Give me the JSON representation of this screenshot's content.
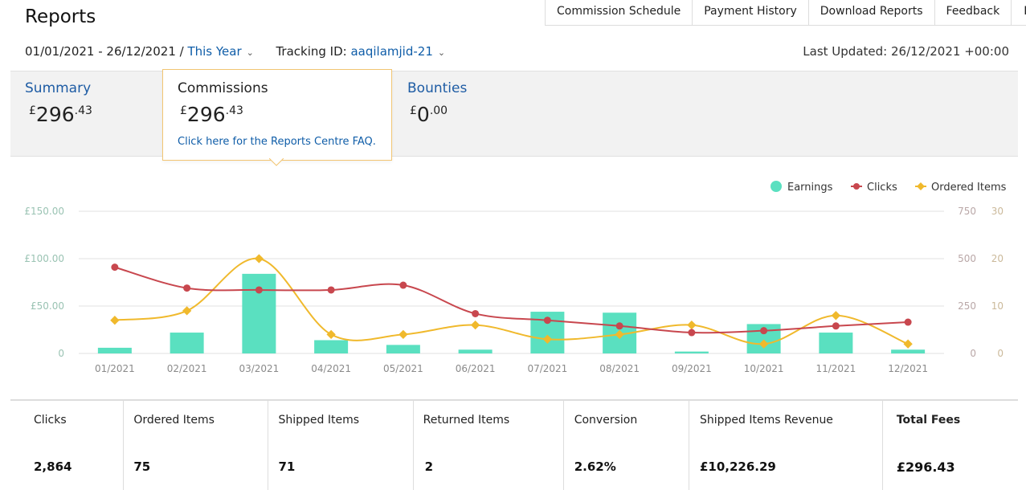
{
  "header": {
    "title": "Reports"
  },
  "topnav": [
    "Commission Schedule",
    "Payment History",
    "Download Reports",
    "Feedback",
    "Help"
  ],
  "filters": {
    "date_range": "01/01/2021 - 26/12/2021 /",
    "period": "This Year",
    "tracking_label": "Tracking ID:",
    "tracking_id": "aaqilamjid-21"
  },
  "last_updated": "Last Updated: 26/12/2021 +00:00",
  "summary": {
    "summary_label": "Summary",
    "summary_currency": "£",
    "summary_whole": "296",
    "summary_decimal": ".43",
    "commissions_label": "Commissions",
    "commissions_currency": "£",
    "commissions_whole": "296",
    "commissions_decimal": ".43",
    "faq_link": "Click here for the Reports Centre FAQ.",
    "bounties_label": "Bounties",
    "bounties_currency": "£",
    "bounties_whole": "0",
    "bounties_decimal": ".00"
  },
  "colors": {
    "earnings": "#5ae0c0",
    "clicks": "#c8474e",
    "ordered": "#f0b92c",
    "link": "#0f5da8"
  },
  "chart_data": {
    "type": "bar+line",
    "categories": [
      "01/2021",
      "02/2021",
      "03/2021",
      "04/2021",
      "05/2021",
      "06/2021",
      "07/2021",
      "08/2021",
      "09/2021",
      "10/2021",
      "11/2021",
      "12/2021"
    ],
    "legend": [
      "Earnings",
      "Clicks",
      "Ordered Items"
    ],
    "left_axis": {
      "ticks": [
        "£150.00",
        "£100.00",
        "£50.00",
        "0"
      ],
      "range": [
        0,
        150
      ]
    },
    "right_axis_clicks": {
      "ticks": [
        "750",
        "500",
        "250",
        "0"
      ],
      "range": [
        0,
        750
      ]
    },
    "right_axis_ordered": {
      "ticks": [
        "30",
        "20",
        "10",
        "0"
      ],
      "range": [
        0,
        30
      ]
    },
    "series": [
      {
        "name": "Earnings",
        "axis": "left",
        "values": [
          6,
          22,
          84,
          14,
          9,
          4,
          44,
          43,
          2,
          31,
          22,
          4
        ]
      },
      {
        "name": "Clicks",
        "axis": "right_clicks",
        "values": [
          455,
          345,
          335,
          335,
          360,
          210,
          175,
          145,
          110,
          120,
          145,
          165
        ]
      },
      {
        "name": "Ordered Items",
        "axis": "right_ordered",
        "values": [
          7,
          9,
          20,
          4,
          4,
          6,
          3,
          4,
          6,
          2,
          8,
          2
        ]
      }
    ]
  },
  "stats": [
    {
      "label": "Clicks",
      "value": "2,864"
    },
    {
      "label": "Ordered Items",
      "value": "75"
    },
    {
      "label": "Shipped Items",
      "value": "71"
    },
    {
      "label": "Returned Items",
      "value": "2"
    },
    {
      "label": "Conversion",
      "value": "2.62%"
    },
    {
      "label": "Shipped Items Revenue",
      "value": "£10,226.29"
    },
    {
      "label": "Total Fees",
      "value": "£296.43"
    }
  ]
}
